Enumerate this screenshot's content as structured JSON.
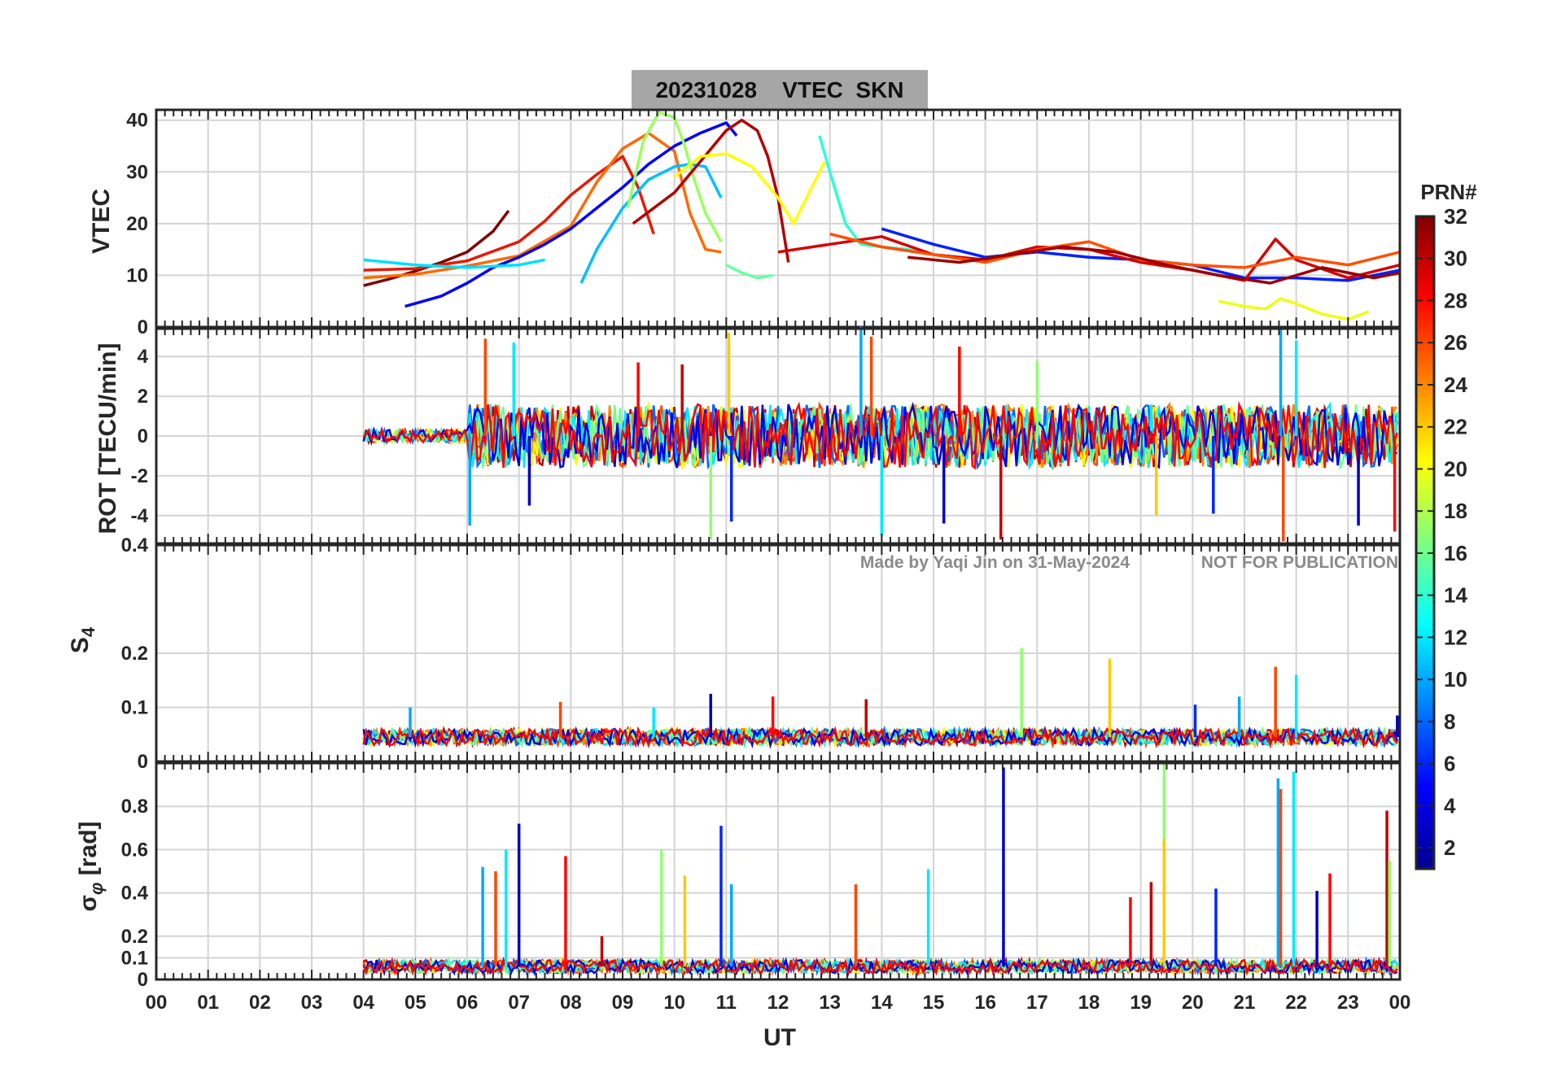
{
  "chart_data": {
    "type": "line",
    "title": "20231028    VTEC  SKN",
    "date": "20231028",
    "station": "SKN",
    "xlabel": "UT",
    "x_ticks": [
      "00",
      "01",
      "02",
      "03",
      "04",
      "05",
      "06",
      "07",
      "08",
      "09",
      "10",
      "11",
      "12",
      "13",
      "14",
      "15",
      "16",
      "17",
      "18",
      "19",
      "20",
      "21",
      "22",
      "23",
      "00"
    ],
    "xlim": [
      0,
      24
    ],
    "watermark": {
      "author_text": "Made by Yaqi Jin on 31-May-2024",
      "notice_text": "NOT FOR PUBLICATION"
    },
    "colorbar": {
      "label": "PRN#",
      "colormap": "jet",
      "range": [
        1,
        32
      ],
      "ticks": [
        "2",
        "4",
        "6",
        "8",
        "10",
        "12",
        "14",
        "16",
        "18",
        "20",
        "22",
        "24",
        "26",
        "28",
        "30",
        "32"
      ]
    },
    "panels": [
      {
        "id": "vtec",
        "ylabel": "VTEC",
        "ylim": [
          0,
          42
        ],
        "yticks": [
          0,
          10,
          20,
          30,
          40
        ],
        "ytick_labels": [
          "0",
          "10",
          "20",
          "30",
          "40"
        ],
        "series": [
          {
            "prn": 32,
            "color": "#800000",
            "x": [
              4.0,
              4.5,
              5.0,
              5.5,
              6.0,
              6.5,
              6.8
            ],
            "y": [
              8.0,
              9.3,
              10.8,
              12.5,
              14.5,
              18.5,
              22.5
            ]
          },
          {
            "prn": 28,
            "color": "#e61900",
            "x": [
              4.0,
              5.0,
              6.0,
              7.0,
              7.5,
              8.0,
              8.5,
              9.0,
              9.3,
              9.6
            ],
            "y": [
              11.0,
              11.3,
              12.8,
              16.5,
              20.5,
              25.5,
              29.5,
              33.0,
              27.0,
              18.0
            ]
          },
          {
            "prn": 24,
            "color": "#ff6a00",
            "x": [
              4.0,
              5.0,
              6.0,
              7.0,
              8.0,
              8.5,
              9.0,
              9.5,
              10.0,
              10.3,
              10.6,
              10.9
            ],
            "y": [
              9.5,
              10.2,
              11.8,
              13.8,
              19.5,
              28.0,
              34.5,
              37.5,
              34.0,
              22.0,
              15.0,
              14.5
            ]
          },
          {
            "prn": 4,
            "color": "#0000ff",
            "x": [
              4.8,
              5.5,
              6.0,
              6.5,
              7.0,
              7.5,
              8.0,
              8.5,
              9.0,
              9.5,
              10.0,
              10.5,
              11.0,
              11.2
            ],
            "y": [
              4.0,
              6.0,
              8.5,
              11.5,
              13.5,
              16.0,
              19.0,
              23.0,
              27.0,
              31.5,
              35.0,
              37.5,
              39.5,
              37.0
            ]
          },
          {
            "prn": 11,
            "color": "#00bfff",
            "x": [
              8.2,
              8.5,
              9.0,
              9.5,
              10.0,
              10.3,
              10.6,
              10.9
            ],
            "y": [
              8.5,
              15.0,
              23.0,
              28.5,
              31.0,
              31.5,
              31.0,
              25.0
            ]
          },
          {
            "prn": 17,
            "color": "#9cff5e",
            "x": [
              9.1,
              9.4,
              9.7,
              10.0,
              10.2,
              10.4,
              10.6,
              10.9
            ],
            "y": [
              23.0,
              36.0,
              41.5,
              40.5,
              35.0,
              28.0,
              22.0,
              16.5
            ]
          },
          {
            "prn": 30,
            "color": "#b30000",
            "x": [
              9.2,
              9.6,
              10.0,
              10.5,
              11.0,
              11.3,
              11.6,
              11.8,
              12.0,
              12.2
            ],
            "y": [
              20.0,
              23.0,
              26.0,
              32.0,
              38.0,
              40.0,
              38.0,
              33.0,
              25.0,
              12.5
            ]
          },
          {
            "prn": 20,
            "color": "#ffff00",
            "x": [
              10.0,
              10.5,
              11.0,
              11.5,
              12.0,
              12.3,
              12.6,
              12.9
            ],
            "y": [
              29.0,
              33.0,
              33.5,
              31.0,
              25.0,
              20.0,
              26.0,
              32.0
            ]
          },
          {
            "prn": 12,
            "color": "#00dfff",
            "x": [
              4.0,
              5.0,
              6.0,
              7.0,
              7.5
            ],
            "y": [
              13.0,
              12.0,
              11.5,
              12.0,
              13.0
            ]
          },
          {
            "prn": 15,
            "color": "#2affd5",
            "x": [
              12.8,
              13.0,
              13.3,
              13.6,
              14.0,
              14.5,
              15.0
            ],
            "y": [
              37.0,
              30.0,
              20.0,
              16.0,
              15.5,
              15.0,
              14.0
            ]
          },
          {
            "prn": 14,
            "color": "#6affa4",
            "x": [
              11.0,
              11.3,
              11.6,
              11.9
            ],
            "y": [
              12.0,
              10.5,
              9.5,
              10.0
            ]
          },
          {
            "prn": 6,
            "color": "#0020ff",
            "x": [
              14.0,
              15.0,
              16.0,
              17.0,
              18.0,
              19.0,
              20.0,
              21.0,
              22.0,
              23.0,
              24.0
            ],
            "y": [
              19.0,
              16.0,
              13.5,
              14.5,
              13.5,
              13.0,
              12.0,
              9.5,
              9.5,
              9.0,
              11.0
            ]
          },
          {
            "prn": 29,
            "color": "#d60000",
            "x": [
              12.0,
              13.0,
              14.0,
              15.0,
              16.0,
              17.0,
              18.0,
              19.0,
              20.0,
              21.0,
              21.6,
              22.0,
              23.0,
              24.0
            ],
            "y": [
              14.5,
              16.0,
              17.5,
              14.0,
              13.0,
              15.5,
              15.0,
              12.5,
              11.0,
              9.0,
              17.0,
              13.0,
              9.5,
              12.0
            ]
          },
          {
            "prn": 25,
            "color": "#ff5000",
            "x": [
              13.0,
              14.0,
              15.0,
              16.0,
              17.0,
              18.0,
              19.0,
              20.0,
              21.0,
              22.0,
              23.0,
              24.0
            ],
            "y": [
              18.0,
              15.5,
              14.0,
              12.5,
              15.0,
              16.5,
              13.0,
              12.0,
              11.5,
              13.5,
              12.0,
              14.5
            ]
          },
          {
            "prn": 19,
            "color": "#efff10",
            "x": [
              20.5,
              21.0,
              21.4,
              21.7,
              22.0,
              22.5,
              23.0,
              23.4
            ],
            "y": [
              5.0,
              4.0,
              3.5,
              5.5,
              4.5,
              2.5,
              1.5,
              3.0
            ]
          },
          {
            "prn": 31,
            "color": "#9b0000",
            "x": [
              14.5,
              15.5,
              16.5,
              17.5,
              18.5,
              19.5,
              20.5,
              21.5,
              22.5,
              23.5,
              24.0
            ],
            "y": [
              13.5,
              12.5,
              14.0,
              15.5,
              14.5,
              12.0,
              10.0,
              8.5,
              11.5,
              9.5,
              10.5
            ]
          }
        ]
      },
      {
        "id": "rot",
        "ylabel": "ROT [TECU/min]",
        "ylim": [
          -5.4,
          5.4
        ],
        "yticks": [
          -4,
          -2,
          0,
          2,
          4
        ],
        "ytick_labels": [
          "-4",
          "-2",
          "0",
          "2",
          "4"
        ],
        "x_range": [
          4.0,
          24.0
        ],
        "baseline": 0,
        "spikes": [
          {
            "x": 6.05,
            "y": -4.5
          },
          {
            "x": 6.35,
            "y": 4.9
          },
          {
            "x": 6.9,
            "y": 4.7
          },
          {
            "x": 7.2,
            "y": -3.5
          },
          {
            "x": 9.3,
            "y": 3.7
          },
          {
            "x": 10.15,
            "y": 3.6
          },
          {
            "x": 10.7,
            "y": -5.2
          },
          {
            "x": 11.05,
            "y": 5.2
          },
          {
            "x": 11.1,
            "y": -4.3
          },
          {
            "x": 13.6,
            "y": 5.5
          },
          {
            "x": 13.8,
            "y": 5.0
          },
          {
            "x": 14.0,
            "y": -5.0
          },
          {
            "x": 15.2,
            "y": -4.4
          },
          {
            "x": 15.5,
            "y": 4.5
          },
          {
            "x": 16.3,
            "y": -5.2
          },
          {
            "x": 17.0,
            "y": 3.8
          },
          {
            "x": 19.3,
            "y": -4.0
          },
          {
            "x": 20.4,
            "y": -3.9
          },
          {
            "x": 21.7,
            "y": 5.4
          },
          {
            "x": 21.75,
            "y": -5.3
          },
          {
            "x": 22.0,
            "y": 4.8
          },
          {
            "x": 23.2,
            "y": -4.5
          },
          {
            "x": 23.9,
            "y": -4.8
          }
        ]
      },
      {
        "id": "s4",
        "ylabel": "S4",
        "ylim": [
          0,
          0.4
        ],
        "yticks": [
          0,
          0.1,
          0.2,
          0.4
        ],
        "ytick_labels": [
          "0",
          "0.1",
          "0.2",
          "0.4"
        ],
        "x_range": [
          4.0,
          24.0
        ],
        "baseline": 0.045,
        "spikes": [
          {
            "x": 4.9,
            "y": 0.1
          },
          {
            "x": 7.8,
            "y": 0.11
          },
          {
            "x": 9.6,
            "y": 0.1
          },
          {
            "x": 10.7,
            "y": 0.125
          },
          {
            "x": 11.9,
            "y": 0.12
          },
          {
            "x": 13.7,
            "y": 0.115
          },
          {
            "x": 16.7,
            "y": 0.21
          },
          {
            "x": 18.4,
            "y": 0.19
          },
          {
            "x": 20.05,
            "y": 0.105
          },
          {
            "x": 20.9,
            "y": 0.12
          },
          {
            "x": 21.6,
            "y": 0.175
          },
          {
            "x": 22.0,
            "y": 0.16
          },
          {
            "x": 23.95,
            "y": 0.085
          }
        ]
      },
      {
        "id": "sigma_phi",
        "ylabel": "σφ [rad]",
        "ylim": [
          0,
          1.0
        ],
        "yticks": [
          0,
          0.1,
          0.2,
          0.4,
          0.6,
          0.8
        ],
        "ytick_labels": [
          "0",
          "0.1",
          "0.2",
          "0.4",
          "0.6",
          "0.8"
        ],
        "x_range": [
          4.0,
          24.0
        ],
        "baseline": 0.06,
        "spikes": [
          {
            "x": 6.3,
            "y": 0.52
          },
          {
            "x": 6.55,
            "y": 0.5
          },
          {
            "x": 6.75,
            "y": 0.6
          },
          {
            "x": 7.0,
            "y": 0.72
          },
          {
            "x": 7.9,
            "y": 0.57
          },
          {
            "x": 8.6,
            "y": 0.2
          },
          {
            "x": 9.75,
            "y": 0.6
          },
          {
            "x": 10.2,
            "y": 0.48
          },
          {
            "x": 10.9,
            "y": 0.71
          },
          {
            "x": 11.1,
            "y": 0.44
          },
          {
            "x": 13.5,
            "y": 0.44
          },
          {
            "x": 14.9,
            "y": 0.51
          },
          {
            "x": 16.35,
            "y": 0.98
          },
          {
            "x": 18.8,
            "y": 0.38
          },
          {
            "x": 19.2,
            "y": 0.45
          },
          {
            "x": 19.45,
            "y": 1.0
          },
          {
            "x": 19.45,
            "y": 0.65
          },
          {
            "x": 20.45,
            "y": 0.42
          },
          {
            "x": 21.65,
            "y": 0.93
          },
          {
            "x": 21.7,
            "y": 0.88
          },
          {
            "x": 21.95,
            "y": 0.96
          },
          {
            "x": 22.4,
            "y": 0.41
          },
          {
            "x": 22.65,
            "y": 0.49
          },
          {
            "x": 23.75,
            "y": 0.78
          },
          {
            "x": 23.8,
            "y": 0.55
          }
        ]
      }
    ]
  }
}
